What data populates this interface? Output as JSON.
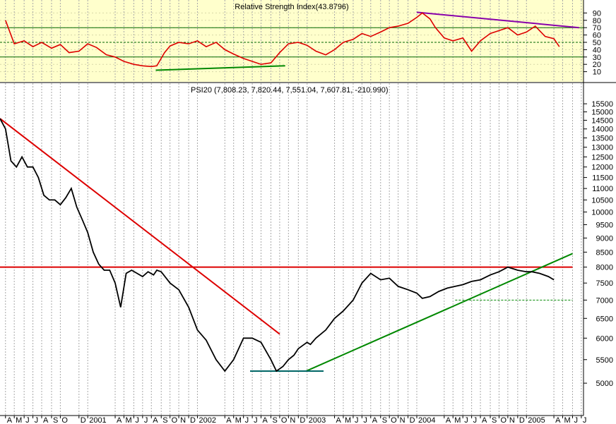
{
  "chart_data": [
    {
      "type": "line",
      "title": "Relative Strength Index(43.8796)",
      "ylim": [
        0,
        100
      ],
      "y_ticks": [
        10,
        20,
        30,
        40,
        50,
        60,
        70,
        80,
        90
      ],
      "reference_lines": [
        30,
        50,
        70
      ],
      "background": "#ffffcc",
      "grid": true,
      "series": [
        {
          "color": "#dd0000",
          "x": [
            2000.25,
            2000.33,
            2000.42,
            2000.5,
            2000.58,
            2000.67,
            2000.75,
            2000.83,
            2000.92,
            2001.0,
            2001.08,
            2001.17,
            2001.25,
            2001.33,
            2001.42,
            2001.5,
            2001.58,
            2001.63,
            2001.7,
            2001.75,
            2001.83,
            2001.92,
            2002.0,
            2002.08,
            2002.17,
            2002.25,
            2002.33,
            2002.42,
            2002.5,
            2002.58,
            2002.67,
            2002.75,
            2002.83,
            2002.92,
            2003.0,
            2003.08,
            2003.17,
            2003.25,
            2003.33,
            2003.42,
            2003.5,
            2003.58,
            2003.67,
            2003.75,
            2003.83,
            2003.92,
            2004.0,
            2004.05,
            2004.12,
            2004.17,
            2004.25,
            2004.33,
            2004.42,
            2004.5,
            2004.58,
            2004.67,
            2004.75,
            2004.83,
            2004.92,
            2005.0,
            2005.08,
            2005.17,
            2005.25,
            2005.3
          ],
          "y": [
            80,
            48,
            52,
            44,
            50,
            42,
            47,
            36,
            38,
            48,
            43,
            33,
            30,
            24,
            20,
            18,
            17,
            18,
            36,
            45,
            50,
            48,
            52,
            44,
            50,
            40,
            34,
            28,
            24,
            20,
            22,
            36,
            48,
            50,
            46,
            38,
            33,
            40,
            50,
            54,
            62,
            58,
            64,
            70,
            72,
            76,
            84,
            90,
            82,
            70,
            56,
            52,
            56,
            38,
            52,
            62,
            66,
            70,
            60,
            64,
            72,
            58,
            55,
            44
          ]
        }
      ],
      "trendlines": [
        {
          "color": "#8800aa",
          "x": [
            2004.0,
            2005.48
          ],
          "y": [
            91,
            70
          ]
        },
        {
          "color": "#008800",
          "x": [
            2001.62,
            2002.8
          ],
          "y": [
            12,
            18
          ]
        }
      ]
    },
    {
      "type": "line",
      "title": "PSI20 (7,808.23, 7,820.44, 7,551.04, 7,607.81, -210.990)",
      "ylim": [
        4500,
        16000
      ],
      "y_scale": "log",
      "y_ticks": [
        5000,
        5500,
        6000,
        6500,
        7000,
        7500,
        8000,
        8500,
        9000,
        9500,
        10000,
        10500,
        11000,
        11500,
        12000,
        12500,
        13000,
        13500,
        14000,
        14500,
        15000,
        15500
      ],
      "x_tick_labels": [
        "A",
        "M",
        "J",
        "J",
        "A",
        "S",
        "O",
        "D",
        "2001",
        "A",
        "M",
        "J",
        "J",
        "A",
        "S",
        "O",
        "N",
        "D",
        "2002",
        "A",
        "M",
        "J",
        "J",
        "A",
        "S",
        "O",
        "N",
        "D",
        "2003",
        "A",
        "M",
        "J",
        "J",
        "A",
        "S",
        "O",
        "N",
        "D",
        "2004",
        "A",
        "M",
        "J",
        "J",
        "A",
        "S",
        "O",
        "N",
        "D",
        "2005",
        "A",
        "M",
        "J",
        "J"
      ],
      "x_tick_positions": [
        2000.25,
        2000.33,
        2000.42,
        2000.5,
        2000.58,
        2000.67,
        2000.75,
        2000.92,
        2001.0,
        2001.25,
        2001.33,
        2001.42,
        2001.5,
        2001.58,
        2001.67,
        2001.75,
        2001.83,
        2001.92,
        2002.0,
        2002.25,
        2002.33,
        2002.42,
        2002.5,
        2002.58,
        2002.67,
        2002.75,
        2002.83,
        2002.92,
        2003.0,
        2003.25,
        2003.33,
        2003.42,
        2003.5,
        2003.58,
        2003.67,
        2003.75,
        2003.83,
        2003.92,
        2004.0,
        2004.25,
        2004.33,
        2004.42,
        2004.5,
        2004.58,
        2004.67,
        2004.75,
        2004.83,
        2004.92,
        2005.0,
        2005.25,
        2005.33,
        2005.42,
        2005.5
      ],
      "grid": true,
      "series": [
        {
          "color": "#000000",
          "x": [
            2000.2,
            2000.25,
            2000.3,
            2000.35,
            2000.4,
            2000.45,
            2000.5,
            2000.55,
            2000.6,
            2000.65,
            2000.7,
            2000.75,
            2000.8,
            2000.85,
            2000.9,
            2000.95,
            2001.0,
            2001.05,
            2001.1,
            2001.15,
            2001.2,
            2001.25,
            2001.3,
            2001.35,
            2001.4,
            2001.45,
            2001.5,
            2001.55,
            2001.6,
            2001.63,
            2001.67,
            2001.75,
            2001.83,
            2001.92,
            2002.0,
            2002.08,
            2002.17,
            2002.25,
            2002.33,
            2002.42,
            2002.5,
            2002.58,
            2002.67,
            2002.72,
            2002.78,
            2002.83,
            2002.88,
            2002.92,
            2003.0,
            2003.03,
            2003.08,
            2003.17,
            2003.25,
            2003.33,
            2003.42,
            2003.5,
            2003.58,
            2003.67,
            2003.75,
            2003.83,
            2003.92,
            2004.0,
            2004.05,
            2004.12,
            2004.2,
            2004.28,
            2004.35,
            2004.42,
            2004.5,
            2004.58,
            2004.67,
            2004.75,
            2004.83,
            2004.92,
            2005.0,
            2005.05,
            2005.12,
            2005.2,
            2005.25
          ],
          "y": [
            14600,
            14000,
            12300,
            12000,
            12500,
            12000,
            12000,
            11500,
            10700,
            10500,
            10500,
            10300,
            10600,
            11000,
            10200,
            9700,
            9200,
            8500,
            8100,
            7900,
            7900,
            7500,
            6800,
            7800,
            7900,
            7800,
            7700,
            7850,
            7750,
            7900,
            7850,
            7500,
            7300,
            6800,
            6200,
            5950,
            5500,
            5250,
            5500,
            6000,
            6000,
            5900,
            5500,
            5250,
            5350,
            5500,
            5600,
            5750,
            5900,
            5850,
            6000,
            6200,
            6500,
            6700,
            7000,
            7500,
            7800,
            7600,
            7650,
            7400,
            7300,
            7200,
            7050,
            7100,
            7250,
            7350,
            7400,
            7450,
            7550,
            7600,
            7750,
            7850,
            8000,
            7900,
            7850,
            7850,
            7800,
            7700,
            7600
          ]
        }
      ],
      "trendlines": [
        {
          "color": "#dd0000",
          "x": [
            2000.2,
            2002.75
          ],
          "y": [
            14600,
            6100
          ]
        },
        {
          "color": "#dd0000",
          "x": [
            2000.2,
            2005.42
          ],
          "y": [
            8000,
            8000
          ]
        },
        {
          "color": "#008800",
          "x": [
            2002.99,
            2005.42
          ],
          "y": [
            5250,
            8450
          ]
        },
        {
          "color": "#006666",
          "x": [
            2002.48,
            2003.15
          ],
          "y": [
            5250,
            5250
          ]
        },
        {
          "color": "#008800",
          "dashed": true,
          "x": [
            2004.35,
            2005.42
          ],
          "y": [
            7000,
            7000
          ]
        }
      ]
    }
  ]
}
